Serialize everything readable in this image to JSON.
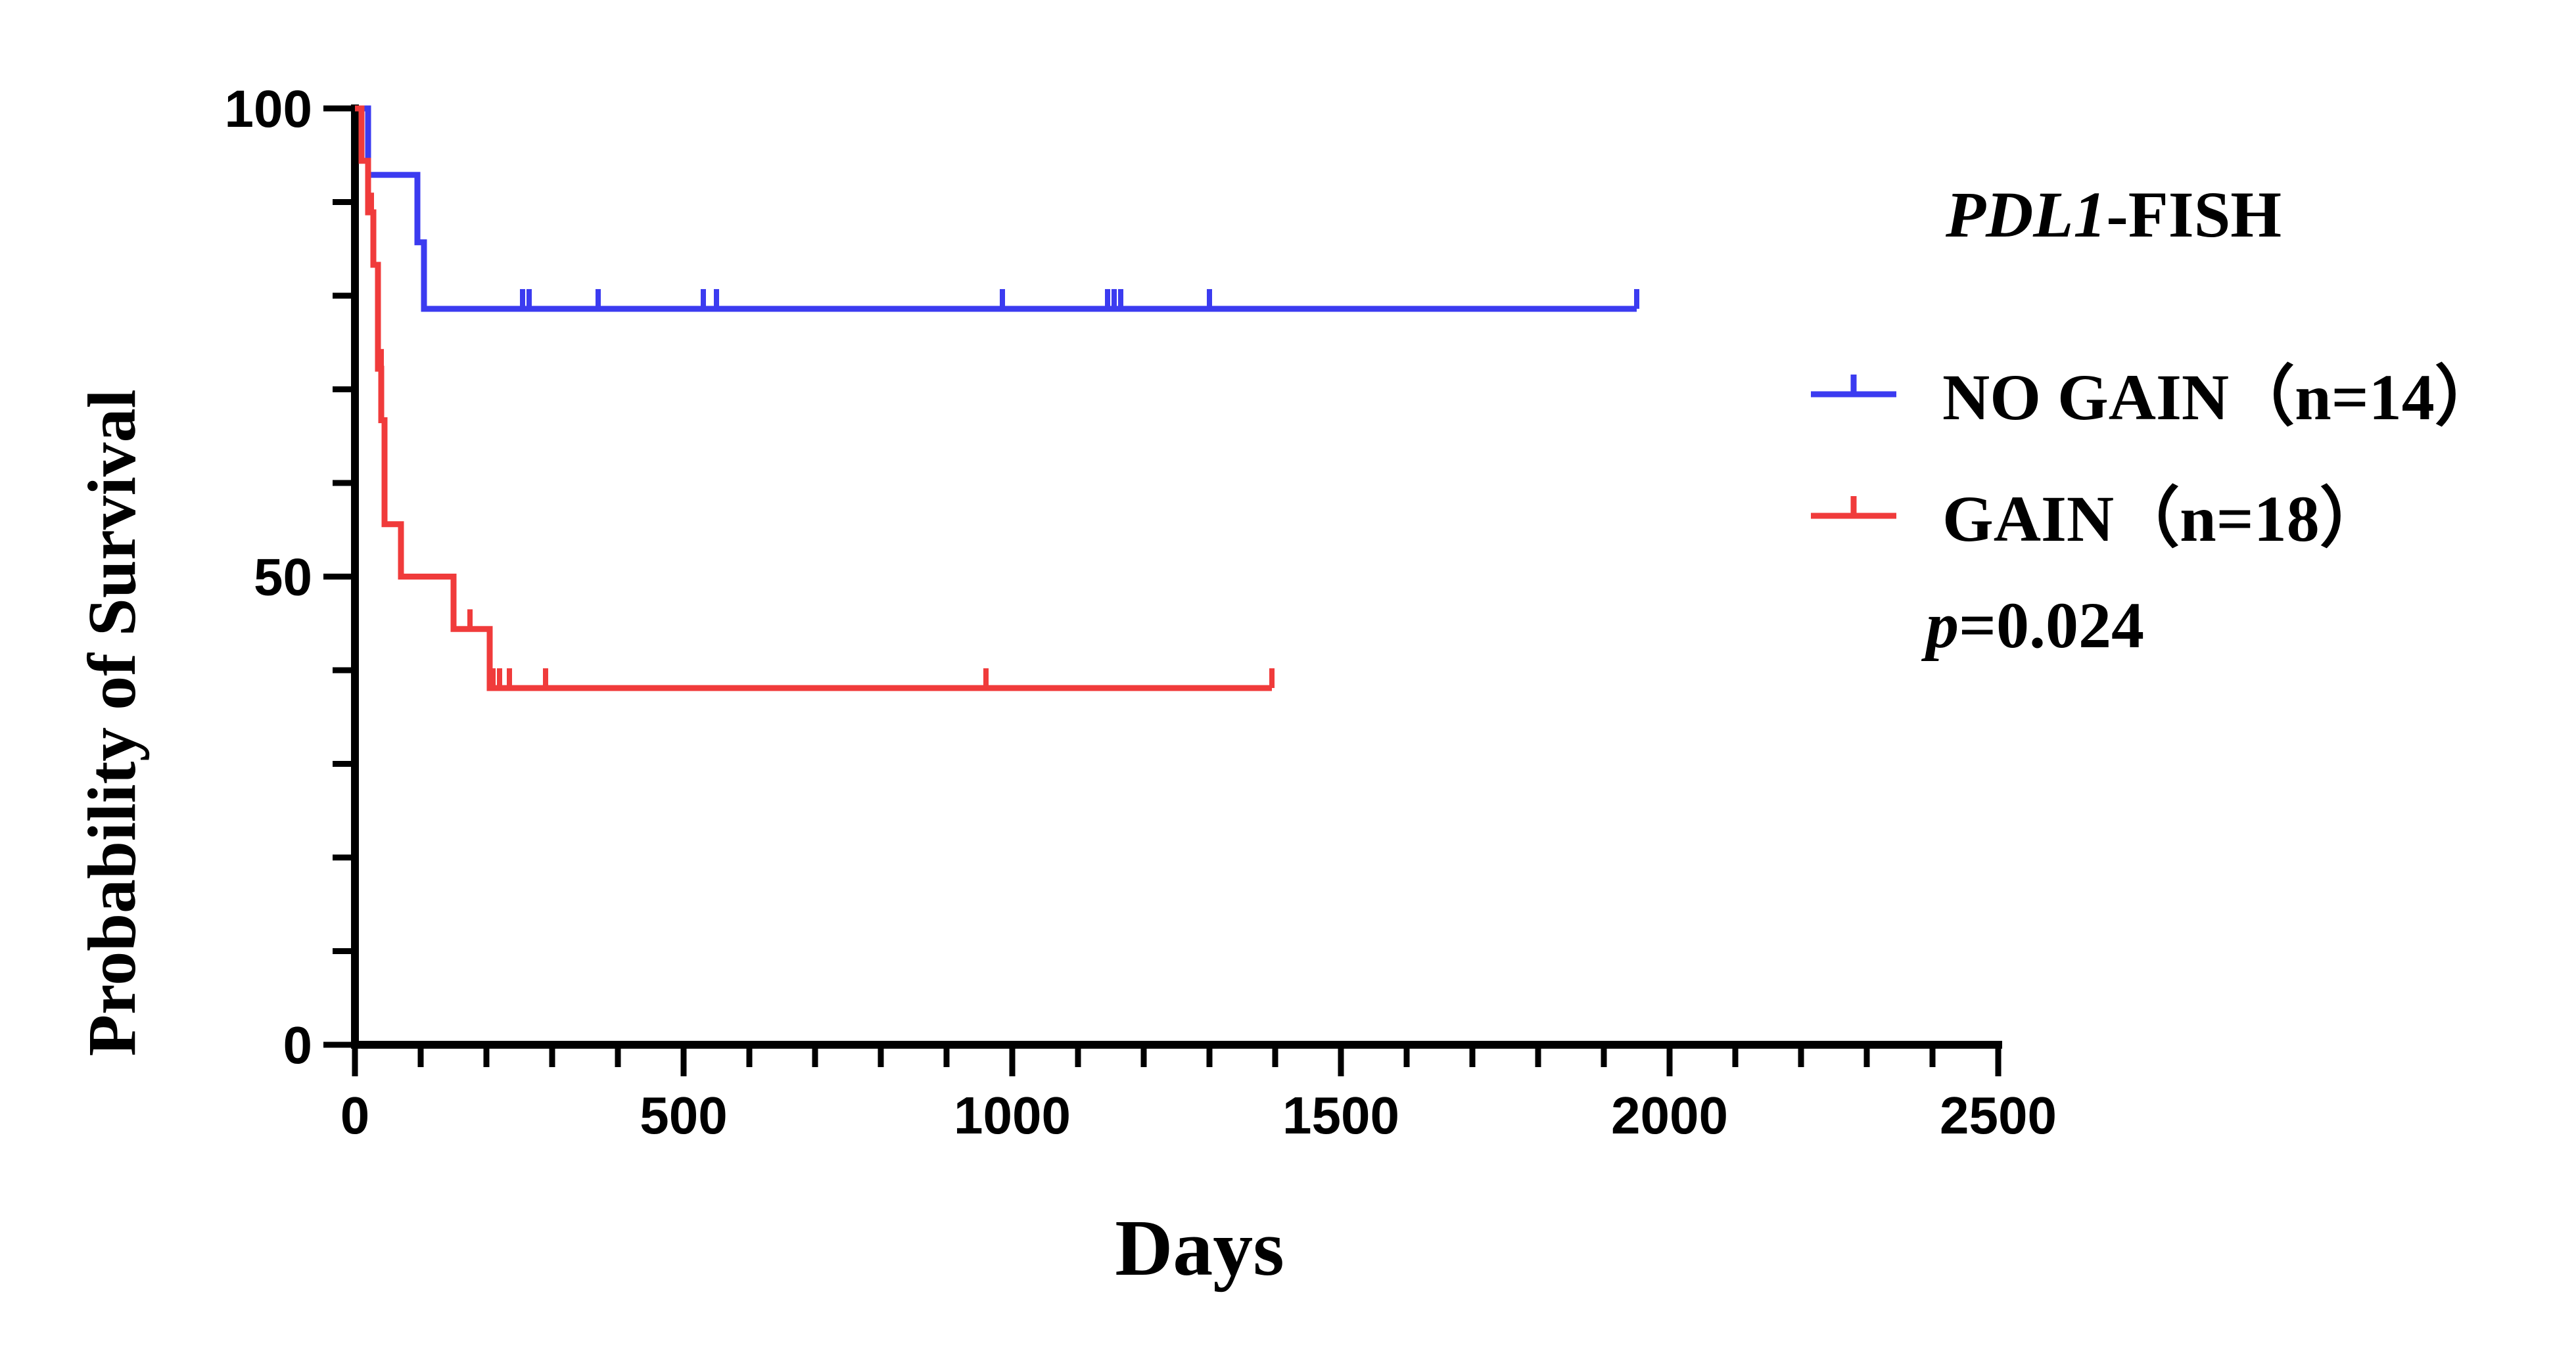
{
  "chart_data": {
    "type": "line",
    "subtype": "kaplan-meier-survival",
    "xlabel": "Days",
    "ylabel": "Probability of Survival",
    "xlim": [
      0,
      2500
    ],
    "ylim": [
      0,
      100
    ],
    "x_ticks": [
      "0",
      "500",
      "1000",
      "1500",
      "2000",
      "2500"
    ],
    "x_tick_values": [
      0,
      500,
      1000,
      1500,
      2000,
      2500
    ],
    "x_minor_step": 100,
    "y_ticks": [
      "0",
      "50",
      "100"
    ],
    "y_tick_values": [
      0,
      50,
      100
    ],
    "y_minor_step": 10,
    "grid": false,
    "legend": {
      "placement": "right",
      "title_italic": "PDL1",
      "title_rest": "-FISH"
    },
    "series": [
      {
        "name": "NO GAIN（n=14）",
        "color": "#3b3bf0",
        "steps": [
          [
            0,
            100
          ],
          [
            20,
            92.9
          ],
          [
            95,
            85.7
          ],
          [
            105,
            78.6
          ],
          [
            1950,
            78.6
          ]
        ],
        "censored": [
          [
            255,
            78.6
          ],
          [
            265,
            78.6
          ],
          [
            370,
            78.6
          ],
          [
            530,
            78.6
          ],
          [
            550,
            78.6
          ],
          [
            985,
            78.6
          ],
          [
            1145,
            78.6
          ],
          [
            1155,
            78.6
          ],
          [
            1165,
            78.6
          ],
          [
            1300,
            78.6
          ],
          [
            1950,
            78.6
          ]
        ]
      },
      {
        "name": "GAIN（n=18）",
        "color": "#f03b3b",
        "steps": [
          [
            0,
            100
          ],
          [
            10,
            94.4
          ],
          [
            20,
            88.9
          ],
          [
            28,
            83.3
          ],
          [
            35,
            72.2
          ],
          [
            40,
            66.7
          ],
          [
            45,
            55.6
          ],
          [
            70,
            50.0
          ],
          [
            150,
            44.4
          ],
          [
            205,
            38.1
          ],
          [
            1395,
            38.1
          ]
        ],
        "censored": [
          [
            25,
            88.9
          ],
          [
            40,
            72.2
          ],
          [
            175,
            44.4
          ],
          [
            210,
            38.1
          ],
          [
            220,
            38.1
          ],
          [
            235,
            38.1
          ],
          [
            290,
            38.1
          ],
          [
            960,
            38.1
          ],
          [
            1395,
            38.1
          ]
        ]
      }
    ],
    "annotations": {
      "p_label": "p",
      "p_value": "=0.024"
    }
  }
}
